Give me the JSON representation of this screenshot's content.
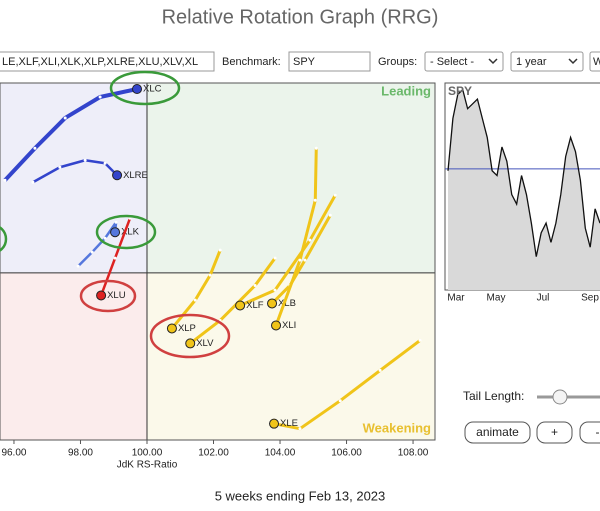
{
  "header": {
    "title": "Relative Rotation Graph (RRG)"
  },
  "controls": {
    "symbols": "LE,XLF,XLI,XLK,XLP,XLRE,XLU,XLV,XL",
    "benchmark_label": "Benchmark:",
    "benchmark": "SPY",
    "groups_label": "Groups:",
    "groups": "- Select -",
    "period": "1 year",
    "partial": "W"
  },
  "chart_data": {
    "type": "rrg",
    "xlabel": "JdK RS-Ratio",
    "xlim": [
      95.58,
      108.66
    ],
    "ylim": [
      94.98,
      105.7
    ],
    "quadrant_center": [
      100,
      100
    ],
    "xticks": [
      {
        "value": 96,
        "label": "96.00"
      },
      {
        "value": 98,
        "label": "98.00"
      },
      {
        "value": 100,
        "label": "100.00"
      },
      {
        "value": 102,
        "label": "102.00"
      },
      {
        "value": 104,
        "label": "104.00"
      },
      {
        "value": 106,
        "label": "106.00"
      },
      {
        "value": 108,
        "label": "108.00"
      }
    ],
    "quadrant_labels": [
      "Leading",
      "Weakening"
    ],
    "series": [
      {
        "name": "XLC",
        "color": "#3344cc",
        "x": [
          95.73,
          96.63,
          97.54,
          98.59,
          99.7
        ],
        "y": [
          102.78,
          103.74,
          104.65,
          105.28,
          105.52
        ]
      },
      {
        "name": "XLRE",
        "color": "#3344cc",
        "x": [
          96.57,
          97.38,
          98.14,
          98.74,
          99.1
        ],
        "y": [
          102.72,
          103.17,
          103.38,
          103.29,
          102.93
        ]
      },
      {
        "name": "XLK",
        "color": "#5577dd",
        "x": [
          97.93,
          98.35,
          98.74,
          99.07,
          99.04
        ],
        "y": [
          100.2,
          100.62,
          101.04,
          101.52,
          101.22
        ]
      },
      {
        "name": "XLU",
        "color": "#dd2222",
        "x": [
          99.49,
          99.04,
          98.62
        ],
        "y": [
          101.64,
          100.44,
          99.32
        ]
      },
      {
        "name": "XLP",
        "color": "#f0c419",
        "x": [
          102.2,
          101.9,
          101.45,
          100.75
        ],
        "y": [
          100.68,
          99.93,
          99.18,
          98.33
        ]
      },
      {
        "name": "XLV",
        "color": "#f0c419",
        "x": [
          103.85,
          103.25,
          102.2,
          101.3
        ],
        "y": [
          100.44,
          99.62,
          98.57,
          97.88
        ]
      },
      {
        "name": "XLF",
        "color": "#f0c419",
        "x": [
          105.66,
          104.9,
          103.85,
          102.8
        ],
        "y": [
          102.33,
          100.98,
          99.48,
          99.02
        ]
      },
      {
        "name": "XLB",
        "color": "#f0c419",
        "x": [
          105.51,
          104.75,
          104.3,
          103.76
        ],
        "y": [
          101.73,
          100.38,
          99.62,
          99.08
        ]
      },
      {
        "name": "XLI",
        "color": "#f0c419",
        "x": [
          105.09,
          105.06,
          104.6,
          103.88
        ],
        "y": [
          103.74,
          102.18,
          100.38,
          98.42
        ]
      },
      {
        "name": "XLE",
        "color": "#f0c419",
        "x": [
          108.21,
          107.01,
          105.81,
          104.6,
          103.82
        ],
        "y": [
          97.97,
          97.07,
          96.16,
          95.32,
          95.47
        ]
      }
    ]
  },
  "spy_chart": {
    "type": "line",
    "name": "SPY",
    "ylim": [
      0,
      100
    ],
    "reference": 58.5,
    "values": [
      57.6,
      82.9,
      94.5,
      96.8,
      87.6,
      89.9,
      92.2,
      82.9,
      73.7,
      57.6,
      55.3,
      69.1,
      62.2,
      46.1,
      41.5,
      55.3,
      46.1,
      32.3,
      16.1,
      27.6,
      32.3,
      23.0,
      32.3,
      46.1,
      64.5,
      73.7,
      66.8,
      53.0,
      29.9,
      20.7,
      39.2,
      32.3
    ],
    "months": [
      "Mar",
      "May",
      "Jul",
      "Sep"
    ]
  },
  "footer": "5 weeks ending Feb 13, 2023",
  "tail_controls": {
    "label": "Tail Length:",
    "buttons": [
      "animate",
      "+",
      "-"
    ]
  }
}
